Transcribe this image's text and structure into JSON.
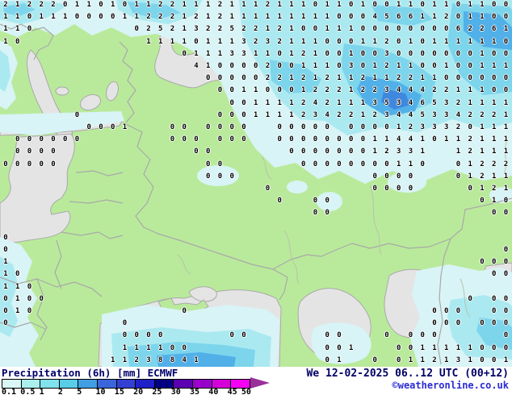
{
  "legend": {
    "title": "Precipitation (6h) [mm] ECMWF",
    "tick_labels": [
      "0.1",
      "0.5",
      "1",
      "2",
      "5",
      "10",
      "15",
      "20",
      "25",
      "30",
      "35",
      "40",
      "45",
      "50"
    ],
    "bar_colors": [
      "#daf7f7",
      "#abeeee",
      "#80e2ec",
      "#57cde8",
      "#429ee2",
      "#3a66da",
      "#3340d2",
      "#2020c8",
      "#000080",
      "#5a00b0",
      "#9900cc",
      "#d400d8",
      "#f500f5"
    ],
    "arrow_color": "#9a2f9a"
  },
  "footer": {
    "datetime": "We 12-02-2025 06..12 UTC (00+12)",
    "copyright": "©weatheronline.co.uk"
  },
  "map": {
    "colors": {
      "land": "#b9ea9b",
      "water": "#e4e4e4",
      "border": "#a9a9a9",
      "precip_1": "#d8f4f6",
      "precip_2": "#abe9f1",
      "precip_3": "#7dd5ec",
      "precip_4": "#52b0e8",
      "precip_5": "#3f88dd"
    },
    "grid": {
      "ox": 2,
      "oy": 1,
      "dx": 14.75,
      "dy": 15.2,
      "rows": [
        {
          "r": 0,
          "runs": [
            [
              0,
              "2122201101011221112111211101101001101101100"
            ]
          ]
        },
        {
          "r": 1,
          "runs": [
            [
              0,
              "1101110000112221212111111111000456611201100"
            ]
          ]
        },
        {
          "r": 2,
          "runs": [
            [
              0,
              "110"
            ],
            [
              11,
              "025213225221210011"
            ],
            [
              29,
              "10000000062261"
            ]
          ]
        },
        {
          "r": 3,
          "runs": [
            [
              0,
              "10"
            ],
            [
              12,
              "11110111323211100"
            ],
            [
              29,
              "01120101111110"
            ]
          ]
        },
        {
          "r": 4,
          "runs": [
            [
              15,
              "01113311012100"
            ],
            [
              29,
              "10030000000100"
            ]
          ]
        },
        {
          "r": 5,
          "runs": [
            [
              16,
              "4100002001110"
            ],
            [
              29,
              "30121100100111"
            ]
          ]
        },
        {
          "r": 6,
          "runs": [
            [
              17,
              "000002212121"
            ],
            [
              29,
              "12112211000000"
            ]
          ]
        },
        {
          "r": 7,
          "runs": [
            [
              18,
              "00110001222"
            ],
            [
              29,
              "12234442211100"
            ]
          ]
        },
        {
          "r": 8,
          "runs": [
            [
              19,
              "0011112421"
            ],
            [
              29,
              "11353465321111"
            ]
          ]
        },
        {
          "r": 9,
          "runs": [
            [
              6,
              "0"
            ],
            [
              18,
              "00011112342"
            ],
            [
              29,
              "21234453342221"
            ]
          ]
        },
        {
          "r": 10,
          "runs": [
            [
              7,
              "0001"
            ],
            [
              14,
              "00"
            ],
            [
              17,
              "0000"
            ],
            [
              23,
              "00000"
            ],
            [
              29,
              "00001233320"
            ],
            [
              40,
              "111"
            ]
          ]
        },
        {
          "r": 11,
          "runs": [
            [
              1,
              "000000"
            ],
            [
              14,
              "000"
            ],
            [
              18,
              "000"
            ],
            [
              23,
              "000000"
            ],
            [
              29,
              "0011441011"
            ],
            [
              39,
              "2111"
            ]
          ]
        },
        {
          "r": 12,
          "runs": [
            [
              1,
              "0000"
            ],
            [
              16,
              "00"
            ],
            [
              24,
              "00000"
            ],
            [
              29,
              "0012331"
            ],
            [
              38,
              "12111"
            ]
          ]
        },
        {
          "r": 13,
          "runs": [
            [
              0,
              "00000"
            ],
            [
              17,
              "00"
            ],
            [
              25,
              "0000"
            ],
            [
              29,
              "0000110"
            ],
            [
              38,
              "01222"
            ]
          ]
        },
        {
          "r": 14,
          "runs": [
            [
              17,
              "000"
            ],
            [
              31,
              "0000"
            ],
            [
              38,
              "01211"
            ]
          ]
        },
        {
          "r": 15,
          "runs": [
            [
              22,
              "0"
            ],
            [
              31,
              "0000"
            ],
            [
              39,
              "0121"
            ]
          ]
        },
        {
          "r": 16,
          "runs": [
            [
              23,
              "0"
            ],
            [
              26,
              "00"
            ],
            [
              40,
              "010"
            ]
          ]
        },
        {
          "r": 17,
          "runs": [
            [
              26,
              "00"
            ],
            [
              41,
              "00"
            ]
          ]
        },
        {
          "r": 19,
          "runs": [
            [
              0,
              "0"
            ]
          ]
        },
        {
          "r": 20,
          "runs": [
            [
              0,
              "0"
            ],
            [
              42,
              "0"
            ]
          ]
        },
        {
          "r": 21,
          "runs": [
            [
              0,
              "1"
            ],
            [
              40,
              "000"
            ]
          ]
        },
        {
          "r": 22,
          "runs": [
            [
              0,
              "10"
            ],
            [
              41,
              "00"
            ]
          ]
        },
        {
          "r": 23,
          "runs": [
            [
              0,
              "110"
            ]
          ]
        },
        {
          "r": 24,
          "runs": [
            [
              0,
              "0100"
            ],
            [
              39,
              "0"
            ],
            [
              41,
              "00"
            ]
          ]
        },
        {
          "r": 25,
          "runs": [
            [
              0,
              "010"
            ],
            [
              15,
              "0"
            ],
            [
              36,
              "000"
            ],
            [
              41,
              "00"
            ]
          ]
        },
        {
          "r": 26,
          "runs": [
            [
              0,
              "0"
            ],
            [
              10,
              "0"
            ],
            [
              36,
              "000"
            ],
            [
              40,
              "000"
            ]
          ]
        },
        {
          "r": 27,
          "runs": [
            [
              10,
              "0000"
            ],
            [
              19,
              "00"
            ],
            [
              27,
              "00"
            ],
            [
              32,
              "0"
            ],
            [
              34,
              "000"
            ],
            [
              42,
              "0"
            ]
          ]
        },
        {
          "r": 28,
          "runs": [
            [
              10,
              "111100"
            ],
            [
              27,
              "001"
            ],
            [
              33,
              "0011111000"
            ]
          ]
        },
        {
          "r": 29,
          "runs": [
            [
              9,
              "11238841"
            ],
            [
              27,
              "01"
            ],
            [
              31,
              "0"
            ],
            [
              33,
              "0112131001"
            ]
          ]
        }
      ]
    }
  }
}
